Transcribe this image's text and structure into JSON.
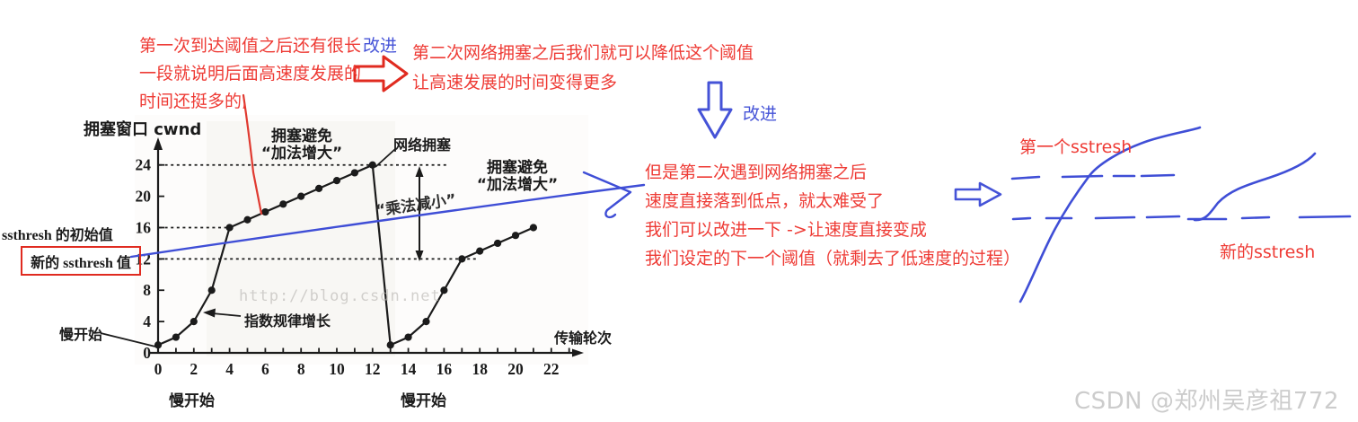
{
  "annotations": {
    "note1_lines": [
      "第一次到达阈值之后还有很长",
      "一段就说明后面高速度发展的",
      "时间还挺多的,"
    ],
    "improve_label_1": "改进",
    "note2_lines": [
      "第二次网络拥塞之后我们就可以降低这个阈值",
      "让高速发展的时间变得更多"
    ],
    "improve_label_2": "改进",
    "note3_lines": [
      "但是第二次遇到网络拥塞之后",
      "速度直接落到低点，就太难受了",
      "我们可以改进一下 ->让速度直接变成",
      "我们设定的下一个阈值（就剩去了低速度的过程）"
    ],
    "sketch_first_ssthresh": "第一个sstresh",
    "sketch_new_ssthresh": "新的sstresh"
  },
  "chart": {
    "y_axis_title": "拥塞窗口 cwnd",
    "x_axis_title": "传输轮次",
    "ssthresh_initial_label": "ssthresh 的初始值",
    "ssthresh_new_label": "新的 ssthresh 值",
    "congestion_avoidance_label_1": "拥塞避免",
    "additive_increase_label_1": "“加法增大”",
    "congestion_avoidance_label_2": "拥塞避免",
    "additive_increase_label_2": "“加法增大”",
    "network_congestion_label": "网络拥塞",
    "multiplicative_decrease_label": "“乘法减小”",
    "exponential_growth_label": "指数规律增长",
    "slow_start_axis_label": "慢开始",
    "slow_start_label_1": "慢开始",
    "slow_start_label_2": "慢开始",
    "url_watermark": "http://blog.csdn.net"
  },
  "credit": "CSDN @郑州吴彦祖772",
  "colors": {
    "annotation_red": "#ee3b35",
    "ink_blue": "#4553d7",
    "chart_ink": "#1b1b1b",
    "box_red": "#e02b20",
    "watermark_gray": "#b9b6b2",
    "credit_gray": "#cccccc"
  },
  "chart_data": {
    "type": "line",
    "title": "TCP拥塞控制：慢开始与拥塞避免",
    "xlabel": "传输轮次",
    "ylabel": "拥塞窗口 cwnd",
    "xlim": [
      0,
      23.5
    ],
    "ylim": [
      0,
      26
    ],
    "grid": false,
    "x_ticks": [
      0,
      2,
      4,
      6,
      8,
      10,
      12,
      14,
      16,
      18,
      20,
      22
    ],
    "y_ticks": [
      0,
      4,
      8,
      12,
      16,
      20,
      24
    ],
    "series": [
      {
        "name": "slow-start-1-then-congestion-avoidance",
        "points": [
          [
            0,
            1
          ],
          [
            1,
            2
          ],
          [
            2,
            4
          ],
          [
            3,
            8
          ],
          [
            4,
            16
          ],
          [
            5,
            17
          ],
          [
            6,
            18
          ],
          [
            7,
            19
          ],
          [
            8,
            20
          ],
          [
            9,
            21
          ],
          [
            10,
            22
          ],
          [
            11,
            23
          ],
          [
            12,
            24
          ]
        ]
      },
      {
        "name": "multiplicative-decrease-drop",
        "dots": false,
        "points": [
          [
            12,
            24
          ],
          [
            13,
            1
          ]
        ]
      },
      {
        "name": "slow-start-2-then-congestion-avoidance",
        "points": [
          [
            13,
            1
          ],
          [
            14,
            2
          ],
          [
            15,
            4
          ],
          [
            16,
            8
          ],
          [
            17,
            12
          ],
          [
            18,
            13
          ],
          [
            19,
            14
          ],
          [
            20,
            15
          ],
          [
            21,
            16
          ]
        ]
      }
    ],
    "threshold_lines": [
      {
        "cwnd": 24,
        "x_end": 16.2
      },
      {
        "cwnd": 16,
        "x_end": 4
      },
      {
        "cwnd": 12,
        "x_end": 17.8
      }
    ]
  }
}
